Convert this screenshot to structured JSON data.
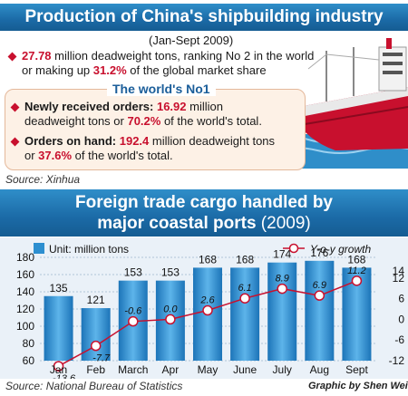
{
  "title": "Production of China's shipbuilding industry",
  "period": "(Jan-Sept 2009)",
  "stat1": {
    "value": "27.78",
    "text_a": " million deadweight tons, ranking No 2 in the world",
    "text_b_pre": "or making up ",
    "pct": "31.2%",
    "text_b_post": " of the global market share"
  },
  "no1_heading": "The world's No1",
  "orders": {
    "label": "Newly received orders: ",
    "value": "16.92",
    "text_a": " million",
    "text_b_pre": "deadweight tons or ",
    "pct": "70.2%",
    "text_b_post": " of the world's total."
  },
  "on_hand": {
    "label": "Orders on hand: ",
    "value": "192.4",
    "text_a": " million deadweight tons",
    "text_b_pre": "or ",
    "pct": "37.6%",
    "text_b_post": " of the world's total."
  },
  "source1": "Source: Xinhua",
  "chart_title_line1": "Foreign trade cargo handled by",
  "chart_title_line2": "major coastal ports",
  "chart_title_year": " (2009)",
  "source2": "Source: National Bureau of Statistics",
  "credit": "Graphic by Shen Wei",
  "colors": {
    "banner_blue": "#1b6aa6",
    "bar_blue": "#2d8fd0",
    "line_red": "#c8102e",
    "accent_red": "#c8102e",
    "box_fill": "#fdf1e6",
    "chart_bg": "#eaf1f8"
  },
  "chart_data": {
    "type": "bar",
    "categories": [
      "Jan",
      "Feb",
      "March",
      "Apr",
      "May",
      "June",
      "July",
      "Aug",
      "Sept"
    ],
    "series": [
      {
        "name": "Unit: million tons",
        "type": "bar",
        "axis": "left",
        "values": [
          135,
          121,
          153,
          153,
          168,
          168,
          174,
          176,
          168
        ]
      },
      {
        "name": "Y-o-y growth",
        "type": "line",
        "axis": "right",
        "values": [
          -13.6,
          -7.7,
          -0.6,
          0.0,
          2.6,
          6.1,
          8.9,
          6.9,
          11.2
        ]
      }
    ],
    "bar_labels": [
      "135",
      "121",
      "153",
      "153",
      "168",
      "168",
      "174",
      "176",
      "168"
    ],
    "line_labels": [
      "-13.6",
      "-7.7",
      "-0.6",
      "0.0",
      "2.6",
      "6.1",
      "8.9",
      "6.9",
      "11.2"
    ],
    "ylim_left": [
      60,
      180
    ],
    "yticks_left": [
      60,
      80,
      100,
      120,
      140,
      160,
      180
    ],
    "ylim_right": [
      -12,
      18
    ],
    "yticks_right": [
      -12,
      -6,
      0,
      6,
      12,
      14
    ],
    "ytick_labels_right": [
      "-12",
      "-6",
      "0",
      "6",
      "12",
      "14"
    ],
    "legend_position": "top"
  }
}
